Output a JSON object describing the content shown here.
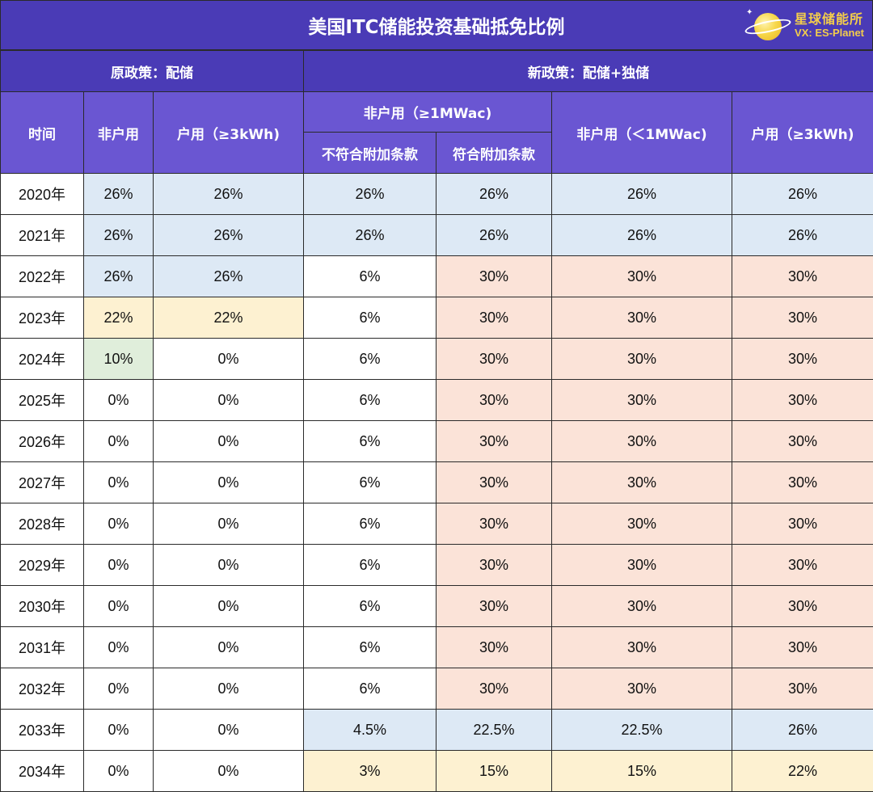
{
  "title": "美国ITC储能投资基础抵免比例",
  "brand": {
    "name": "星球储能所",
    "wechat": "VX: ES-Planet"
  },
  "policy_headers": {
    "old": "原政策：配储",
    "new": "新政策：配储+独储"
  },
  "column_headers": {
    "time": "时间",
    "old_nonres": "非户用",
    "old_res": "户用（≥3kWh)",
    "new_nonres_large": "非户用（≥1MWac)",
    "new_nonres_large_noncompliant": "不符合附加条款",
    "new_nonres_large_compliant": "符合附加条款",
    "new_nonres_small": "非户用（＜1MWac)",
    "new_res": "户用（≥3kWh)"
  },
  "colors": {
    "title_bg": "#4a3bb6",
    "header_bg": "#6a56d2",
    "blue": "#dde9f5",
    "yellow": "#fdf1d1",
    "green": "#e0eedb",
    "peach": "#fbe3d8",
    "white": "#ffffff"
  },
  "rows": [
    {
      "year": "2020年",
      "v": [
        "26%",
        "26%",
        "26%",
        "26%",
        "26%",
        "26%"
      ],
      "c": [
        "blue",
        "blue",
        "blue",
        "blue",
        "blue",
        "blue"
      ]
    },
    {
      "year": "2021年",
      "v": [
        "26%",
        "26%",
        "26%",
        "26%",
        "26%",
        "26%"
      ],
      "c": [
        "blue",
        "blue",
        "blue",
        "blue",
        "blue",
        "blue"
      ]
    },
    {
      "year": "2022年",
      "v": [
        "26%",
        "26%",
        "6%",
        "30%",
        "30%",
        "30%"
      ],
      "c": [
        "blue",
        "blue",
        "white",
        "peach",
        "peach",
        "peach"
      ]
    },
    {
      "year": "2023年",
      "v": [
        "22%",
        "22%",
        "6%",
        "30%",
        "30%",
        "30%"
      ],
      "c": [
        "yellow",
        "yellow",
        "white",
        "peach",
        "peach",
        "peach"
      ]
    },
    {
      "year": "2024年",
      "v": [
        "10%",
        "0%",
        "6%",
        "30%",
        "30%",
        "30%"
      ],
      "c": [
        "green",
        "white",
        "white",
        "peach",
        "peach",
        "peach"
      ]
    },
    {
      "year": "2025年",
      "v": [
        "0%",
        "0%",
        "6%",
        "30%",
        "30%",
        "30%"
      ],
      "c": [
        "white",
        "white",
        "white",
        "peach",
        "peach",
        "peach"
      ]
    },
    {
      "year": "2026年",
      "v": [
        "0%",
        "0%",
        "6%",
        "30%",
        "30%",
        "30%"
      ],
      "c": [
        "white",
        "white",
        "white",
        "peach",
        "peach",
        "peach"
      ]
    },
    {
      "year": "2027年",
      "v": [
        "0%",
        "0%",
        "6%",
        "30%",
        "30%",
        "30%"
      ],
      "c": [
        "white",
        "white",
        "white",
        "peach",
        "peach",
        "peach"
      ]
    },
    {
      "year": "2028年",
      "v": [
        "0%",
        "0%",
        "6%",
        "30%",
        "30%",
        "30%"
      ],
      "c": [
        "white",
        "white",
        "white",
        "peach",
        "peach",
        "peach"
      ]
    },
    {
      "year": "2029年",
      "v": [
        "0%",
        "0%",
        "6%",
        "30%",
        "30%",
        "30%"
      ],
      "c": [
        "white",
        "white",
        "white",
        "peach",
        "peach",
        "peach"
      ]
    },
    {
      "year": "2030年",
      "v": [
        "0%",
        "0%",
        "6%",
        "30%",
        "30%",
        "30%"
      ],
      "c": [
        "white",
        "white",
        "white",
        "peach",
        "peach",
        "peach"
      ]
    },
    {
      "year": "2031年",
      "v": [
        "0%",
        "0%",
        "6%",
        "30%",
        "30%",
        "30%"
      ],
      "c": [
        "white",
        "white",
        "white",
        "peach",
        "peach",
        "peach"
      ]
    },
    {
      "year": "2032年",
      "v": [
        "0%",
        "0%",
        "6%",
        "30%",
        "30%",
        "30%"
      ],
      "c": [
        "white",
        "white",
        "white",
        "peach",
        "peach",
        "peach"
      ]
    },
    {
      "year": "2033年",
      "v": [
        "0%",
        "0%",
        "4.5%",
        "22.5%",
        "22.5%",
        "26%"
      ],
      "c": [
        "white",
        "white",
        "blue",
        "blue",
        "blue",
        "blue"
      ]
    },
    {
      "year": "2034年",
      "v": [
        "0%",
        "0%",
        "3%",
        "15%",
        "15%",
        "22%"
      ],
      "c": [
        "white",
        "white",
        "yellow",
        "yellow",
        "yellow",
        "yellow"
      ]
    }
  ]
}
